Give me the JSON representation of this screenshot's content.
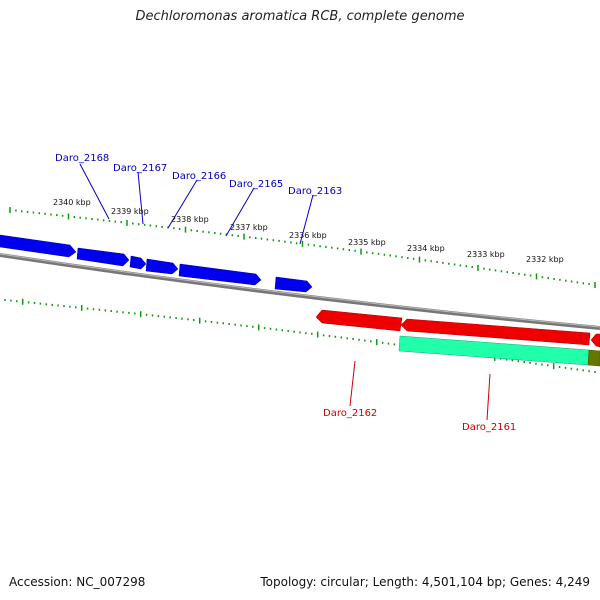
{
  "title": "Dechloromonas aromatica RCB, complete genome",
  "footer": {
    "accession": "Accession: NC_007298",
    "stats": "Topology: circular; Length: 4,501,104 bp; Genes: 4,249"
  },
  "colors": {
    "plus_strand": "#0000ee",
    "minus_strand": "#ee0000",
    "rna_feature": "#22ffaa",
    "other_feature": "#667700",
    "ticks": "#119911",
    "backbone": "#888888"
  },
  "kbp_labels": [
    "2340 kbp",
    "2339 kbp",
    "2338 kbp",
    "2337 kbp",
    "2336 kbp",
    "2335 kbp",
    "2334 kbp",
    "2333 kbp",
    "2332 kbp"
  ],
  "gene_labels": {
    "plus": [
      "Daro_2168",
      "Daro_2167",
      "Daro_2166",
      "Daro_2165",
      "Daro_2163"
    ],
    "minus": [
      "Daro_2162",
      "Daro_2161"
    ]
  }
}
